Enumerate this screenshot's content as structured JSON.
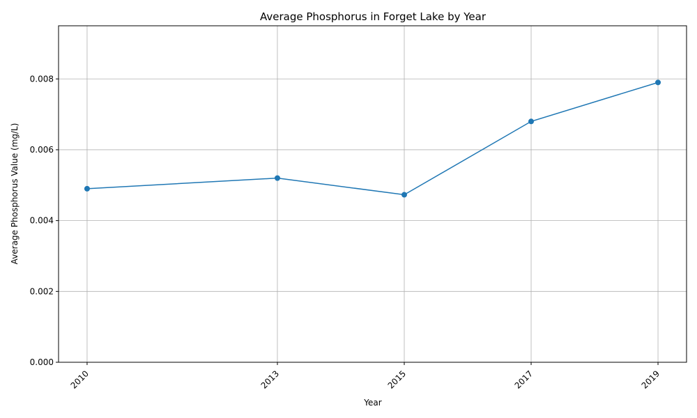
{
  "chart_data": {
    "type": "line",
    "title": "Average Phosphorus in Forget Lake by Year",
    "xlabel": "Year",
    "ylabel": "Average Phosphorus Value (mg/L)",
    "x": [
      2010,
      2013,
      2015,
      2017,
      2019
    ],
    "x_tick_labels": [
      "2010",
      "2013",
      "2015",
      "2017",
      "2019"
    ],
    "xlim": [
      2009.55,
      2019.45
    ],
    "ylim": [
      0,
      0.0095
    ],
    "y_ticks": [
      0,
      0.002,
      0.004,
      0.006,
      0.008
    ],
    "y_tick_labels": [
      "0.000",
      "0.002",
      "0.004",
      "0.006",
      "0.008"
    ],
    "grid": true,
    "series": [
      {
        "values": [
          0.0049,
          0.0052,
          0.00473,
          0.0068,
          0.0079
        ],
        "color": "#1f77b4",
        "marker": "circle"
      }
    ],
    "colors": {
      "grid": "#b0b0b0",
      "axis": "#000000"
    }
  }
}
